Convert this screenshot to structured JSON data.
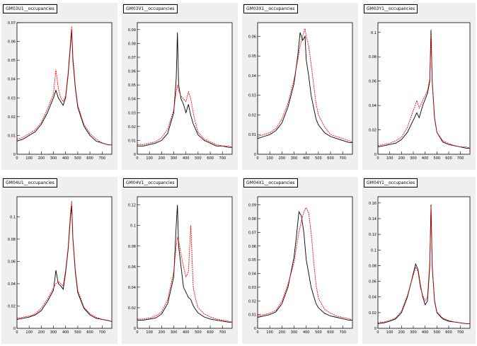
{
  "colors": {
    "background": "#ffffff",
    "panel": "#efefef",
    "frame": "#000000",
    "series_1": "#000000",
    "series_2": "#ff0000"
  },
  "chart_data": [
    {
      "type": "line",
      "title": "GM03U1__occupancies",
      "xticks": [
        0,
        100,
        200,
        300,
        400,
        500,
        600,
        700
      ],
      "xlim": [
        0,
        780
      ],
      "yticks": [
        0.01,
        0.02,
        0.03,
        0.04,
        0.05,
        0.06,
        0.07
      ],
      "ylim": [
        0,
        0.07
      ],
      "grid": false,
      "series": [
        {
          "color": "#000000",
          "x": [
            0,
            50,
            100,
            150,
            200,
            250,
            300,
            320,
            340,
            360,
            380,
            400,
            420,
            440,
            450,
            460,
            480,
            500,
            550,
            600,
            650,
            700,
            750,
            780
          ],
          "y": [
            0.007,
            0.008,
            0.01,
            0.012,
            0.016,
            0.022,
            0.03,
            0.034,
            0.03,
            0.028,
            0.026,
            0.03,
            0.042,
            0.058,
            0.066,
            0.05,
            0.035,
            0.025,
            0.015,
            0.01,
            0.007,
            0.006,
            0.005,
            0.005
          ]
        },
        {
          "color": "#ff0000",
          "x": [
            0,
            50,
            100,
            150,
            200,
            250,
            300,
            320,
            340,
            360,
            380,
            400,
            420,
            440,
            450,
            460,
            480,
            500,
            550,
            600,
            650,
            700,
            750,
            780
          ],
          "y": [
            0.008,
            0.009,
            0.011,
            0.013,
            0.017,
            0.024,
            0.032,
            0.045,
            0.035,
            0.03,
            0.028,
            0.031,
            0.043,
            0.06,
            0.068,
            0.052,
            0.036,
            0.026,
            0.016,
            0.011,
            0.008,
            0.006,
            0.005,
            0.005
          ]
        }
      ]
    },
    {
      "type": "line",
      "title": "GM03V1__occupancies",
      "xticks": [
        0,
        100,
        200,
        300,
        400,
        500,
        600,
        700
      ],
      "xlim": [
        0,
        780
      ],
      "yticks": [
        0.01,
        0.02,
        0.03,
        0.04,
        0.05,
        0.06,
        0.07,
        0.08,
        0.09
      ],
      "ylim": [
        0,
        0.095
      ],
      "grid": false,
      "series": [
        {
          "color": "#000000",
          "x": [
            0,
            50,
            100,
            150,
            200,
            250,
            300,
            320,
            330,
            340,
            360,
            380,
            400,
            420,
            440,
            460,
            480,
            500,
            550,
            600,
            650,
            700,
            750,
            780
          ],
          "y": [
            0.006,
            0.006,
            0.007,
            0.008,
            0.01,
            0.015,
            0.03,
            0.055,
            0.088,
            0.05,
            0.04,
            0.036,
            0.03,
            0.036,
            0.028,
            0.022,
            0.018,
            0.014,
            0.01,
            0.008,
            0.006,
            0.006,
            0.005,
            0.005
          ]
        },
        {
          "color": "#ff0000",
          "x": [
            0,
            50,
            100,
            150,
            200,
            250,
            300,
            320,
            330,
            340,
            360,
            380,
            400,
            420,
            440,
            460,
            480,
            500,
            550,
            600,
            650,
            700,
            750,
            780
          ],
          "y": [
            0.007,
            0.007,
            0.008,
            0.009,
            0.012,
            0.018,
            0.032,
            0.045,
            0.05,
            0.046,
            0.042,
            0.04,
            0.038,
            0.045,
            0.04,
            0.03,
            0.022,
            0.016,
            0.011,
            0.009,
            0.007,
            0.006,
            0.006,
            0.005
          ]
        }
      ]
    },
    {
      "type": "line",
      "title": "GM03X1__occupancies",
      "xticks": [
        0,
        100,
        200,
        300,
        400,
        500,
        600,
        700
      ],
      "xlim": [
        0,
        780
      ],
      "yticks": [
        0.01,
        0.02,
        0.03,
        0.04,
        0.05,
        0.06
      ],
      "ylim": [
        0,
        0.067
      ],
      "grid": false,
      "series": [
        {
          "color": "#000000",
          "x": [
            0,
            50,
            100,
            150,
            200,
            250,
            300,
            330,
            350,
            370,
            390,
            400,
            420,
            440,
            460,
            480,
            500,
            550,
            600,
            650,
            700,
            750,
            780
          ],
          "y": [
            0.008,
            0.009,
            0.01,
            0.012,
            0.016,
            0.024,
            0.036,
            0.05,
            0.062,
            0.058,
            0.06,
            0.048,
            0.04,
            0.03,
            0.024,
            0.018,
            0.015,
            0.011,
            0.009,
            0.008,
            0.007,
            0.006,
            0.006
          ]
        },
        {
          "color": "#ff0000",
          "x": [
            0,
            50,
            100,
            150,
            200,
            250,
            300,
            330,
            350,
            370,
            390,
            400,
            420,
            440,
            460,
            480,
            500,
            550,
            600,
            650,
            700,
            750,
            780
          ],
          "y": [
            0.009,
            0.01,
            0.011,
            0.013,
            0.018,
            0.026,
            0.038,
            0.048,
            0.055,
            0.06,
            0.064,
            0.06,
            0.055,
            0.046,
            0.036,
            0.026,
            0.02,
            0.014,
            0.01,
            0.009,
            0.008,
            0.007,
            0.006
          ]
        }
      ]
    },
    {
      "type": "line",
      "title": "GM03Y1__occupancies",
      "xticks": [
        0,
        100,
        200,
        300,
        400,
        500,
        600,
        700
      ],
      "xlim": [
        0,
        780
      ],
      "yticks": [
        0.02,
        0.04,
        0.06,
        0.08,
        0.1
      ],
      "ylim": [
        0,
        0.108
      ],
      "grid": false,
      "series": [
        {
          "color": "#000000",
          "x": [
            0,
            50,
            100,
            150,
            200,
            250,
            300,
            330,
            350,
            380,
            400,
            420,
            440,
            450,
            460,
            480,
            500,
            550,
            600,
            650,
            700,
            750,
            780
          ],
          "y": [
            0.006,
            0.007,
            0.008,
            0.009,
            0.012,
            0.018,
            0.028,
            0.034,
            0.03,
            0.04,
            0.045,
            0.05,
            0.06,
            0.102,
            0.06,
            0.03,
            0.018,
            0.01,
            0.008,
            0.007,
            0.006,
            0.005,
            0.005
          ]
        },
        {
          "color": "#ff0000",
          "x": [
            0,
            50,
            100,
            150,
            200,
            250,
            300,
            330,
            350,
            380,
            400,
            420,
            440,
            450,
            460,
            480,
            500,
            550,
            600,
            650,
            700,
            750,
            780
          ],
          "y": [
            0.007,
            0.008,
            0.009,
            0.011,
            0.014,
            0.022,
            0.036,
            0.044,
            0.038,
            0.044,
            0.048,
            0.052,
            0.062,
            0.098,
            0.06,
            0.03,
            0.018,
            0.011,
            0.009,
            0.007,
            0.006,
            0.006,
            0.005
          ]
        }
      ]
    },
    {
      "type": "line",
      "title": "GM04U1__occupancies",
      "xticks": [
        0,
        100,
        200,
        300,
        400,
        500,
        600,
        700
      ],
      "xlim": [
        0,
        780
      ],
      "yticks": [
        0.02,
        0.04,
        0.06,
        0.08,
        0.1
      ],
      "ylim": [
        0,
        0.118
      ],
      "grid": false,
      "series": [
        {
          "color": "#000000",
          "x": [
            0,
            50,
            100,
            150,
            200,
            250,
            300,
            320,
            340,
            360,
            380,
            400,
            420,
            440,
            450,
            460,
            480,
            500,
            550,
            600,
            650,
            700,
            750,
            780
          ],
          "y": [
            0.008,
            0.009,
            0.01,
            0.012,
            0.016,
            0.024,
            0.034,
            0.052,
            0.04,
            0.038,
            0.035,
            0.05,
            0.07,
            0.1,
            0.11,
            0.08,
            0.05,
            0.032,
            0.018,
            0.012,
            0.009,
            0.008,
            0.007,
            0.006
          ]
        },
        {
          "color": "#ff0000",
          "x": [
            0,
            50,
            100,
            150,
            200,
            250,
            300,
            320,
            340,
            360,
            380,
            400,
            420,
            440,
            450,
            460,
            480,
            500,
            550,
            600,
            650,
            700,
            750,
            780
          ],
          "y": [
            0.009,
            0.01,
            0.011,
            0.013,
            0.018,
            0.026,
            0.036,
            0.04,
            0.042,
            0.04,
            0.038,
            0.052,
            0.072,
            0.104,
            0.114,
            0.082,
            0.052,
            0.034,
            0.019,
            0.013,
            0.01,
            0.008,
            0.007,
            0.006
          ]
        }
      ]
    },
    {
      "type": "line",
      "title": "GM04V1__occupancies",
      "xticks": [
        0,
        100,
        200,
        300,
        400,
        500,
        600,
        700
      ],
      "xlim": [
        0,
        780
      ],
      "yticks": [
        0.02,
        0.04,
        0.06,
        0.08,
        0.1,
        0.12
      ],
      "ylim": [
        0,
        0.128
      ],
      "grid": false,
      "series": [
        {
          "color": "#000000",
          "x": [
            0,
            50,
            100,
            150,
            200,
            250,
            300,
            320,
            330,
            340,
            360,
            380,
            400,
            420,
            440,
            460,
            480,
            500,
            550,
            600,
            650,
            700,
            750,
            780
          ],
          "y": [
            0.008,
            0.008,
            0.009,
            0.01,
            0.014,
            0.024,
            0.05,
            0.1,
            0.12,
            0.08,
            0.06,
            0.04,
            0.035,
            0.03,
            0.028,
            0.022,
            0.018,
            0.015,
            0.011,
            0.009,
            0.008,
            0.007,
            0.006,
            0.006
          ]
        },
        {
          "color": "#ff0000",
          "x": [
            0,
            50,
            100,
            150,
            200,
            250,
            300,
            320,
            330,
            340,
            360,
            380,
            400,
            420,
            440,
            460,
            480,
            500,
            550,
            600,
            650,
            700,
            750,
            780
          ],
          "y": [
            0.009,
            0.009,
            0.01,
            0.012,
            0.016,
            0.028,
            0.055,
            0.08,
            0.088,
            0.085,
            0.072,
            0.06,
            0.05,
            0.055,
            0.1,
            0.04,
            0.028,
            0.02,
            0.014,
            0.011,
            0.009,
            0.008,
            0.007,
            0.006
          ]
        }
      ]
    },
    {
      "type": "line",
      "title": "GM04X1__occupancies",
      "xticks": [
        0,
        100,
        200,
        300,
        400,
        500,
        600,
        700
      ],
      "xlim": [
        0,
        780
      ],
      "yticks": [
        0.01,
        0.02,
        0.03,
        0.04,
        0.05,
        0.06,
        0.07,
        0.08,
        0.09
      ],
      "ylim": [
        0,
        0.096
      ],
      "grid": false,
      "series": [
        {
          "color": "#000000",
          "x": [
            0,
            50,
            100,
            150,
            200,
            250,
            300,
            320,
            340,
            360,
            380,
            400,
            420,
            440,
            460,
            480,
            500,
            550,
            600,
            650,
            700,
            750,
            780
          ],
          "y": [
            0.008,
            0.009,
            0.01,
            0.012,
            0.018,
            0.03,
            0.052,
            0.068,
            0.085,
            0.082,
            0.07,
            0.05,
            0.04,
            0.03,
            0.024,
            0.018,
            0.015,
            0.011,
            0.009,
            0.008,
            0.007,
            0.006,
            0.006
          ]
        },
        {
          "color": "#ff0000",
          "x": [
            0,
            50,
            100,
            150,
            200,
            250,
            300,
            320,
            340,
            360,
            380,
            400,
            420,
            440,
            460,
            480,
            500,
            550,
            600,
            650,
            700,
            750,
            780
          ],
          "y": [
            0.009,
            0.01,
            0.011,
            0.013,
            0.02,
            0.032,
            0.048,
            0.06,
            0.07,
            0.078,
            0.085,
            0.088,
            0.084,
            0.07,
            0.05,
            0.032,
            0.022,
            0.014,
            0.011,
            0.009,
            0.008,
            0.007,
            0.006
          ]
        }
      ]
    },
    {
      "type": "line",
      "title": "GM04Y1__occupancies",
      "xticks": [
        0,
        100,
        200,
        300,
        400,
        500,
        600,
        700
      ],
      "xlim": [
        0,
        780
      ],
      "yticks": [
        0.02,
        0.04,
        0.06,
        0.08,
        0.1,
        0.12,
        0.14,
        0.16
      ],
      "ylim": [
        0,
        0.168
      ],
      "grid": false,
      "series": [
        {
          "color": "#000000",
          "x": [
            0,
            50,
            100,
            150,
            200,
            250,
            300,
            320,
            340,
            360,
            380,
            400,
            420,
            440,
            450,
            460,
            480,
            500,
            550,
            600,
            650,
            700,
            750,
            780
          ],
          "y": [
            0.006,
            0.007,
            0.009,
            0.012,
            0.02,
            0.04,
            0.07,
            0.082,
            0.075,
            0.055,
            0.04,
            0.03,
            0.035,
            0.08,
            0.158,
            0.08,
            0.035,
            0.02,
            0.012,
            0.009,
            0.008,
            0.007,
            0.006,
            0.006
          ]
        },
        {
          "color": "#ff0000",
          "x": [
            0,
            50,
            100,
            150,
            200,
            250,
            300,
            320,
            340,
            360,
            380,
            400,
            420,
            440,
            450,
            460,
            480,
            500,
            550,
            600,
            650,
            700,
            750,
            780
          ],
          "y": [
            0.007,
            0.008,
            0.01,
            0.013,
            0.022,
            0.042,
            0.068,
            0.078,
            0.072,
            0.052,
            0.042,
            0.035,
            0.04,
            0.085,
            0.155,
            0.078,
            0.036,
            0.021,
            0.013,
            0.01,
            0.008,
            0.007,
            0.006,
            0.006
          ]
        }
      ]
    }
  ]
}
